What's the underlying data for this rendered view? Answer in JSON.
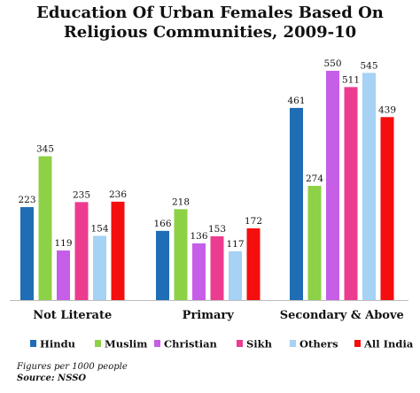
{
  "title_line1": "Education Of Urban Females Based On",
  "title_line2": "Religious Communities, 2009-10",
  "chart_data": {
    "type": "bar",
    "title": "Education Of Urban Females Based On Religious Communities, 2009-10",
    "categories": [
      "Not Literate",
      "Primary",
      "Secondary & Above"
    ],
    "series": [
      {
        "name": "Hindu",
        "color": "#1f6db5",
        "values": [
          223,
          166,
          461
        ]
      },
      {
        "name": "Muslim",
        "color": "#8dd146",
        "values": [
          345,
          218,
          274
        ]
      },
      {
        "name": "Christian",
        "color": "#c65ee8",
        "values": [
          119,
          136,
          550
        ]
      },
      {
        "name": "Sikh",
        "color": "#ec3c8f",
        "values": [
          235,
          153,
          511
        ]
      },
      {
        "name": "Others",
        "color": "#a5d2f5",
        "values": [
          154,
          117,
          545
        ]
      },
      {
        "name": "All India",
        "color": "#f50e0e",
        "values": [
          236,
          172,
          439
        ]
      }
    ],
    "ylim": [
      0,
      600
    ],
    "grid": false,
    "legend_position": "bottom"
  },
  "footnote": "Figures per 1000 people",
  "source": "Source: NSSO"
}
